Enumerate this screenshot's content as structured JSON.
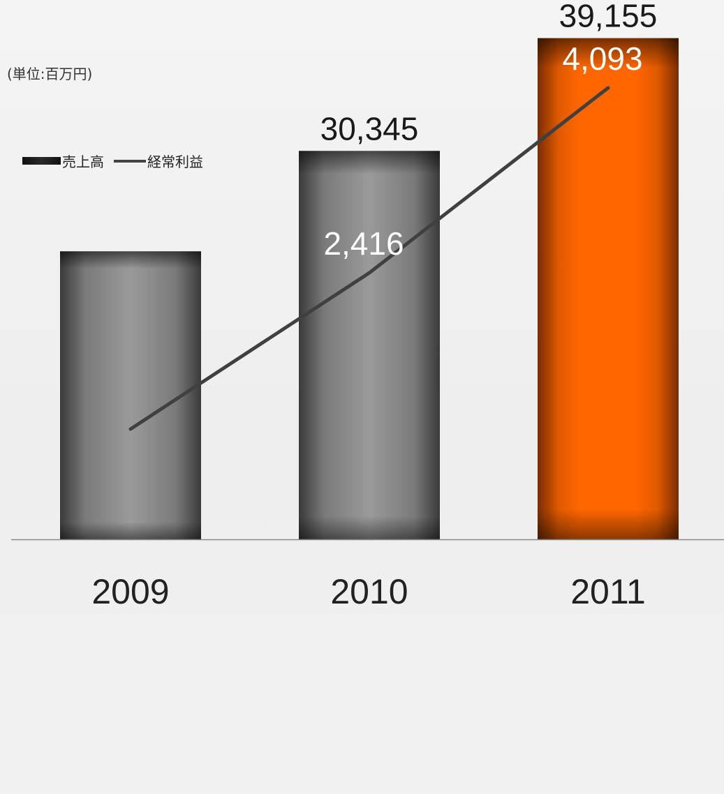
{
  "unit_label": "(単位:百万円)",
  "legend": {
    "bar_label": "売上高",
    "line_label": "経常利益"
  },
  "colors": {
    "bar_gray": "#9a9a9a",
    "bar_gray_edge": "#3a3a3a",
    "bar_highlight": "#ff6600",
    "bar_highlight_edge": "#7a2e00",
    "line": "#404040",
    "axis": "#8a8a8a"
  },
  "chart_data": {
    "type": "bar",
    "categories": [
      "2009",
      "2010",
      "2011"
    ],
    "series": [
      {
        "name": "売上高",
        "type": "bar",
        "values": [
          22500,
          30345,
          39155
        ],
        "labels": [
          "",
          "30,345",
          "39,155"
        ],
        "highlight_index": 2
      },
      {
        "name": "経常利益",
        "type": "line",
        "values": [
          1000,
          2416,
          4093
        ],
        "labels": [
          "",
          "2,416",
          "4,093"
        ]
      }
    ],
    "ylim": [
      0,
      40500
    ],
    "y2lim": [
      0,
      4700
    ],
    "grid": false,
    "legend_position": "top-left"
  }
}
